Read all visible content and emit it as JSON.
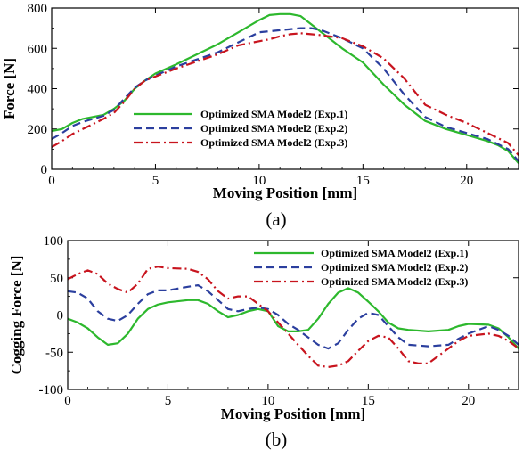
{
  "colors": {
    "exp1": "#2db82d",
    "exp2": "#2b3f9e",
    "exp3": "#c8141e"
  },
  "chart_data": [
    {
      "type": "line",
      "caption": "(a)",
      "xlabel": "Moving Position [mm]",
      "ylabel": "Force [N]",
      "xlim": [
        0,
        22.5
      ],
      "ylim": [
        0,
        800
      ],
      "xticks": [
        0,
        5,
        10,
        15,
        20
      ],
      "yticks": [
        0,
        200,
        400,
        600,
        800
      ],
      "legend_position": "center",
      "series": [
        {
          "name": "Optimized SMA Model2 (Exp.1)",
          "style": "solid",
          "color_key": "exp1",
          "points": [
            [
              0,
              190
            ],
            [
              0.5,
              200
            ],
            [
              1,
              230
            ],
            [
              1.5,
              250
            ],
            [
              2,
              260
            ],
            [
              2.5,
              270
            ],
            [
              3,
              300
            ],
            [
              3.5,
              340
            ],
            [
              4,
              400
            ],
            [
              4.5,
              440
            ],
            [
              5,
              475
            ],
            [
              6,
              520
            ],
            [
              7,
              570
            ],
            [
              8,
              620
            ],
            [
              9,
              680
            ],
            [
              10,
              740
            ],
            [
              10.5,
              765
            ],
            [
              11,
              770
            ],
            [
              11.5,
              770
            ],
            [
              12,
              760
            ],
            [
              12.5,
              720
            ],
            [
              13,
              680
            ],
            [
              13.5,
              640
            ],
            [
              14,
              600
            ],
            [
              15,
              530
            ],
            [
              16,
              420
            ],
            [
              17,
              320
            ],
            [
              18,
              240
            ],
            [
              19,
              200
            ],
            [
              20,
              170
            ],
            [
              21,
              140
            ],
            [
              21.5,
              120
            ],
            [
              22,
              90
            ],
            [
              22.5,
              30
            ]
          ]
        },
        {
          "name": "Optimized SMA Model2 (Exp.2)",
          "style": "dashed",
          "color_key": "exp2",
          "points": [
            [
              0,
              150
            ],
            [
              0.5,
              180
            ],
            [
              1,
              215
            ],
            [
              1.5,
              235
            ],
            [
              2,
              250
            ],
            [
              2.5,
              265
            ],
            [
              3,
              295
            ],
            [
              3.5,
              350
            ],
            [
              4,
              405
            ],
            [
              4.5,
              440
            ],
            [
              5,
              465
            ],
            [
              6,
              510
            ],
            [
              7,
              545
            ],
            [
              8,
              580
            ],
            [
              9,
              630
            ],
            [
              10,
              680
            ],
            [
              11,
              690
            ],
            [
              12,
              700
            ],
            [
              12.5,
              700
            ],
            [
              13,
              690
            ],
            [
              13.5,
              670
            ],
            [
              14,
              650
            ],
            [
              15,
              600
            ],
            [
              16,
              500
            ],
            [
              17,
              370
            ],
            [
              18,
              260
            ],
            [
              19,
              210
            ],
            [
              20,
              180
            ],
            [
              21,
              150
            ],
            [
              22,
              100
            ],
            [
              22.5,
              40
            ]
          ]
        },
        {
          "name": "Optimized SMA Model2 (Exp.3)",
          "style": "dashdot",
          "color_key": "exp3",
          "points": [
            [
              0,
              110
            ],
            [
              0.5,
              140
            ],
            [
              1,
              175
            ],
            [
              1.5,
              200
            ],
            [
              2,
              225
            ],
            [
              2.5,
              250
            ],
            [
              3,
              280
            ],
            [
              3.5,
              335
            ],
            [
              4,
              400
            ],
            [
              4.5,
              440
            ],
            [
              5,
              460
            ],
            [
              6,
              500
            ],
            [
              7,
              535
            ],
            [
              8,
              570
            ],
            [
              9,
              615
            ],
            [
              10,
              635
            ],
            [
              10.5,
              645
            ],
            [
              11,
              660
            ],
            [
              11.5,
              670
            ],
            [
              12,
              675
            ],
            [
              12.5,
              670
            ],
            [
              13,
              665
            ],
            [
              14,
              650
            ],
            [
              15,
              610
            ],
            [
              16,
              550
            ],
            [
              17,
              450
            ],
            [
              18,
              320
            ],
            [
              19,
              270
            ],
            [
              20,
              230
            ],
            [
              21,
              180
            ],
            [
              22,
              130
            ],
            [
              22.5,
              70
            ]
          ]
        }
      ]
    },
    {
      "type": "line",
      "caption": "(b)",
      "xlabel": "Moving Position [mm]",
      "ylabel": "Cogging Force [N]",
      "xlim": [
        0,
        22.5
      ],
      "ylim": [
        -100,
        100
      ],
      "xticks": [
        0,
        5,
        10,
        15,
        20
      ],
      "yticks": [
        -100,
        -50,
        0,
        50,
        100
      ],
      "legend_position": "top-right",
      "series": [
        {
          "name": "Optimized SMA Model2 (Exp.1)",
          "style": "solid",
          "color_key": "exp1",
          "points": [
            [
              0,
              -5
            ],
            [
              0.5,
              -10
            ],
            [
              1,
              -18
            ],
            [
              1.5,
              -30
            ],
            [
              2,
              -40
            ],
            [
              2.5,
              -38
            ],
            [
              3,
              -25
            ],
            [
              3.5,
              -5
            ],
            [
              4,
              8
            ],
            [
              4.5,
              14
            ],
            [
              5,
              17
            ],
            [
              6,
              20
            ],
            [
              6.5,
              20
            ],
            [
              7,
              15
            ],
            [
              7.5,
              5
            ],
            [
              8,
              -3
            ],
            [
              8.5,
              0
            ],
            [
              9,
              5
            ],
            [
              9.5,
              8
            ],
            [
              10,
              5
            ],
            [
              10.5,
              -15
            ],
            [
              11,
              -22
            ],
            [
              11.5,
              -22
            ],
            [
              12,
              -20
            ],
            [
              12.5,
              -5
            ],
            [
              13,
              15
            ],
            [
              13.5,
              30
            ],
            [
              14,
              36
            ],
            [
              14.5,
              30
            ],
            [
              15,
              18
            ],
            [
              15.5,
              5
            ],
            [
              16,
              -10
            ],
            [
              16.5,
              -18
            ],
            [
              17,
              -20
            ],
            [
              18,
              -22
            ],
            [
              19,
              -20
            ],
            [
              19.5,
              -15
            ],
            [
              20,
              -12
            ],
            [
              21,
              -13
            ],
            [
              21.5,
              -18
            ],
            [
              22,
              -30
            ],
            [
              22.5,
              -45
            ]
          ]
        },
        {
          "name": "Optimized SMA Model2 (Exp.2)",
          "style": "dashed",
          "color_key": "exp2",
          "points": [
            [
              0,
              32
            ],
            [
              0.5,
              30
            ],
            [
              1,
              22
            ],
            [
              1.5,
              5
            ],
            [
              2,
              -5
            ],
            [
              2.5,
              -8
            ],
            [
              3,
              0
            ],
            [
              3.5,
              15
            ],
            [
              4,
              28
            ],
            [
              4.5,
              33
            ],
            [
              5,
              33
            ],
            [
              6,
              38
            ],
            [
              6.5,
              40
            ],
            [
              7,
              32
            ],
            [
              7.5,
              20
            ],
            [
              8,
              8
            ],
            [
              8.5,
              5
            ],
            [
              9,
              8
            ],
            [
              9.5,
              10
            ],
            [
              10,
              8
            ],
            [
              10.5,
              0
            ],
            [
              11,
              -12
            ],
            [
              11.5,
              -20
            ],
            [
              12,
              -30
            ],
            [
              12.5,
              -40
            ],
            [
              13,
              -45
            ],
            [
              13.5,
              -38
            ],
            [
              14,
              -20
            ],
            [
              14.5,
              -5
            ],
            [
              15,
              3
            ],
            [
              15.5,
              0
            ],
            [
              16,
              -15
            ],
            [
              16.5,
              -30
            ],
            [
              17,
              -40
            ],
            [
              18,
              -42
            ],
            [
              19,
              -40
            ],
            [
              19.5,
              -32
            ],
            [
              20,
              -25
            ],
            [
              21,
              -15
            ],
            [
              21.5,
              -20
            ],
            [
              22,
              -28
            ],
            [
              22.5,
              -40
            ]
          ]
        },
        {
          "name": "Optimized SMA Model2 (Exp.3)",
          "style": "dashdot",
          "color_key": "exp3",
          "points": [
            [
              0,
              48
            ],
            [
              0.5,
              55
            ],
            [
              1,
              60
            ],
            [
              1.5,
              55
            ],
            [
              2,
              42
            ],
            [
              2.5,
              35
            ],
            [
              3,
              30
            ],
            [
              3.5,
              42
            ],
            [
              4,
              62
            ],
            [
              4.5,
              65
            ],
            [
              5,
              63
            ],
            [
              6,
              62
            ],
            [
              6.5,
              58
            ],
            [
              7,
              48
            ],
            [
              7.5,
              32
            ],
            [
              8,
              22
            ],
            [
              8.5,
              25
            ],
            [
              9,
              25
            ],
            [
              9.5,
              15
            ],
            [
              10,
              5
            ],
            [
              10.5,
              -10
            ],
            [
              11,
              -25
            ],
            [
              11.5,
              -40
            ],
            [
              12,
              -55
            ],
            [
              12.5,
              -68
            ],
            [
              13,
              -70
            ],
            [
              13.5,
              -68
            ],
            [
              14,
              -62
            ],
            [
              14.5,
              -48
            ],
            [
              15,
              -35
            ],
            [
              15.5,
              -28
            ],
            [
              16,
              -30
            ],
            [
              16.5,
              -45
            ],
            [
              17,
              -62
            ],
            [
              17.5,
              -65
            ],
            [
              18,
              -65
            ],
            [
              18.5,
              -55
            ],
            [
              19,
              -45
            ],
            [
              19.5,
              -35
            ],
            [
              20,
              -28
            ],
            [
              21,
              -25
            ],
            [
              21.5,
              -28
            ],
            [
              22,
              -35
            ],
            [
              22.5,
              -45
            ]
          ]
        }
      ]
    }
  ]
}
